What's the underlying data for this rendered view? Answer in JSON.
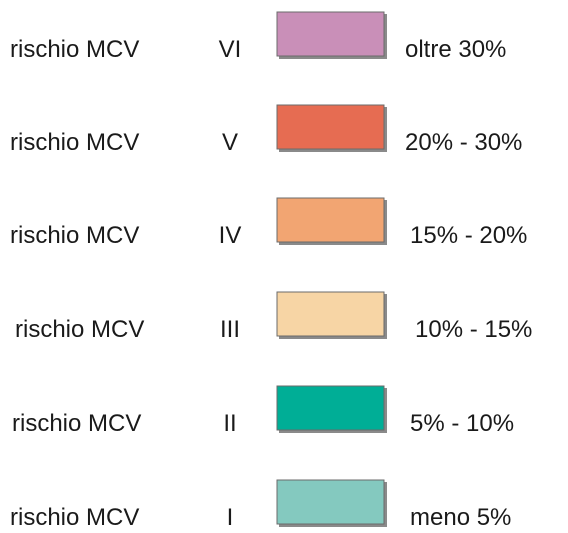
{
  "rows": [
    {
      "label": "rischio MCV",
      "class": "VI",
      "range": "oltre 30%",
      "color": "#c98fb8"
    },
    {
      "label": "rischio MCV",
      "class": "V",
      "range": "20% - 30%",
      "color": "#e66c52"
    },
    {
      "label": "rischio MCV",
      "class": "IV",
      "range": "15% - 20%",
      "color": "#f2a572"
    },
    {
      "label": "rischio MCV",
      "class": "III",
      "range": "10% - 15%",
      "color": "#f7d5a5"
    },
    {
      "label": "rischio MCV",
      "class": "II",
      "range": "5% - 10%",
      "color": "#00ae96"
    },
    {
      "label": "rischio MCV",
      "class": "I",
      "range": "meno 5%",
      "color": "#84c9bf"
    }
  ]
}
